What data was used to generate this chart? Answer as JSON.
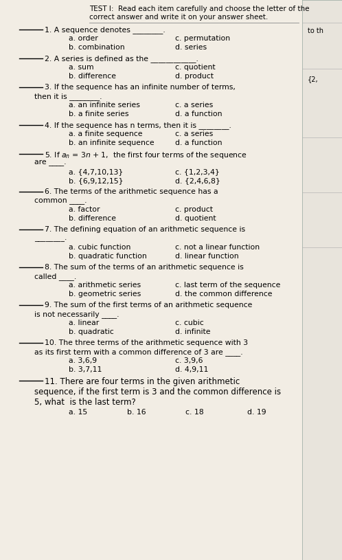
{
  "bg_color": "#3a8a5a",
  "paper_color": "#f2ede4",
  "right_panel_color": "#e8e4dc",
  "right_panel2_color": "#ddd9d0",
  "title_line1": "TEST I:  Read each item carefully and choose the letter of the",
  "title_line2": "correct answer and write it on your answer sheet.",
  "side_text1": "to th",
  "side_text2": "{2,",
  "fig_width": 4.98,
  "fig_height": 8.15,
  "dpi": 100
}
